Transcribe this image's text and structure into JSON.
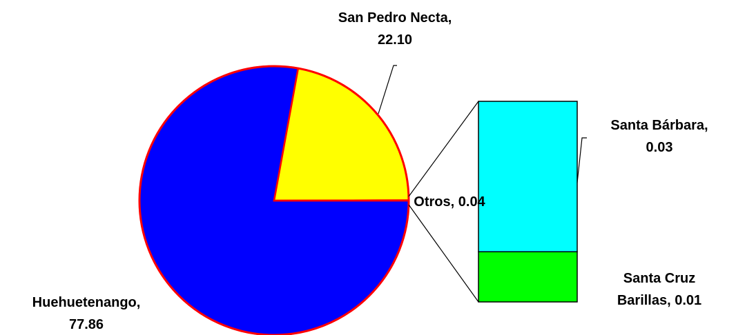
{
  "chart_data": {
    "type": "bar-of-pie",
    "slices": {
      "values": [
        77.86,
        22.1,
        0.04
      ],
      "value_labels": [
        "Huehuetenango,\n77.86",
        "San Pedro Necta,\n22.10",
        "Otros, 0.04"
      ],
      "colors": [
        "#0000ff",
        "#ffff00",
        "#ffffff"
      ]
    },
    "bar": {
      "values": [
        0.03,
        0.01
      ],
      "value_labels": [
        "Santa Bárbara,\n0.03",
        "Santa Cruz\nBarillas, 0.01"
      ],
      "colors": [
        "#00ffff",
        "#00ff00"
      ]
    }
  }
}
